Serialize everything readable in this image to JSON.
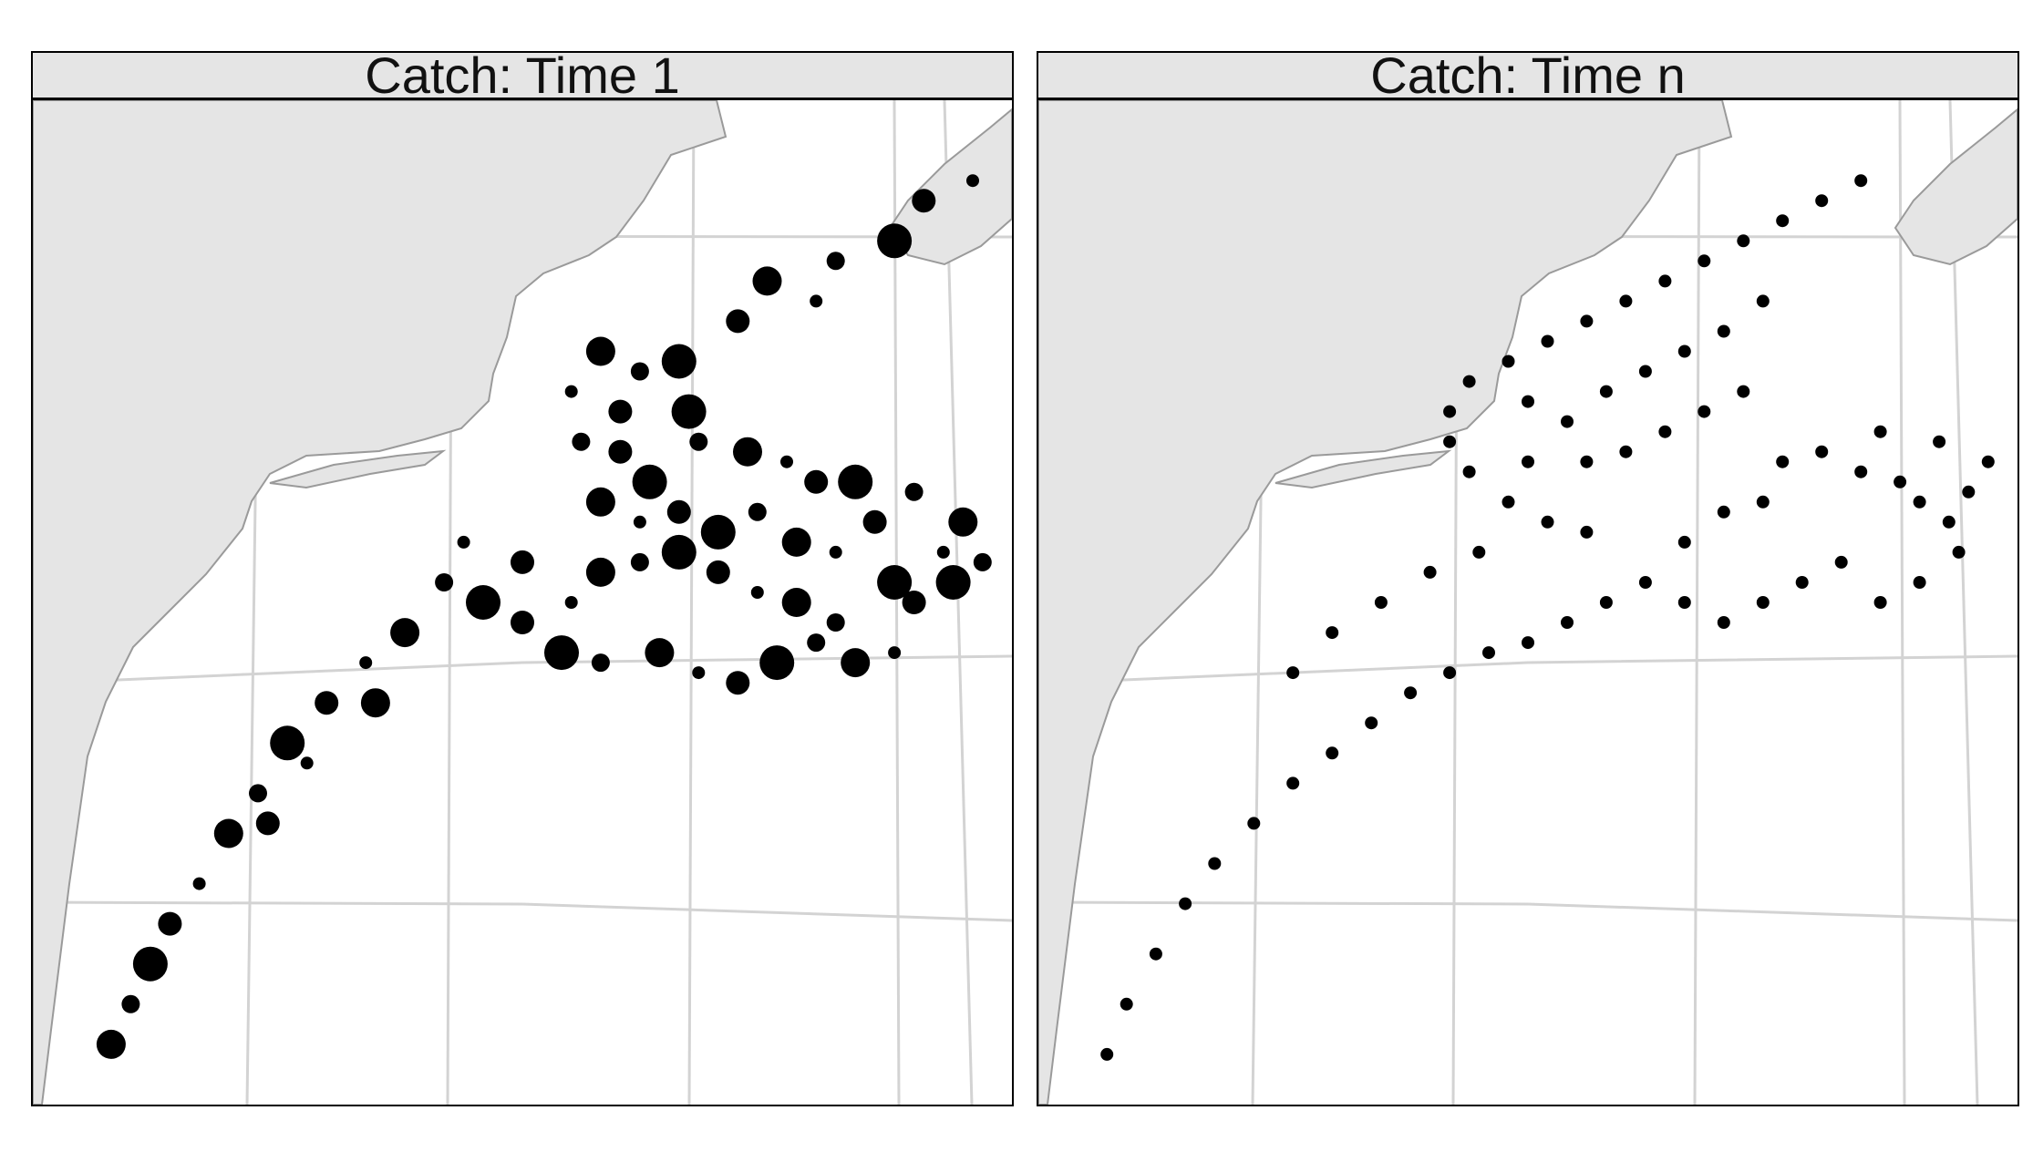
{
  "panels": [
    {
      "strip_title": "Catch: Time 1"
    },
    {
      "strip_title": "Catch: Time n"
    }
  ],
  "colors": {
    "land": "#e5e5e5",
    "coast": "#9a9a9a",
    "grid": "#d3d3d3",
    "point": "#000000",
    "strip": "#e5e5e5"
  },
  "chart_data": [
    {
      "type": "scatter",
      "title": "Catch: Time 1",
      "description_of_marks": "catch locations; circle size proportional to catch",
      "points": [
        [
          0.96,
          0.08
        ],
        [
          0.91,
          0.1
        ],
        [
          0.88,
          0.14
        ],
        [
          0.82,
          0.16
        ],
        [
          0.75,
          0.18
        ],
        [
          0.8,
          0.2
        ],
        [
          0.72,
          0.22
        ],
        [
          0.66,
          0.26
        ],
        [
          0.62,
          0.27
        ],
        [
          0.58,
          0.25
        ],
        [
          0.55,
          0.29
        ],
        [
          0.6,
          0.31
        ],
        [
          0.67,
          0.31
        ],
        [
          0.68,
          0.34
        ],
        [
          0.73,
          0.35
        ],
        [
          0.77,
          0.36
        ],
        [
          0.8,
          0.38
        ],
        [
          0.84,
          0.38
        ],
        [
          0.9,
          0.39
        ],
        [
          0.95,
          0.42
        ],
        [
          0.93,
          0.45
        ],
        [
          0.6,
          0.35
        ],
        [
          0.63,
          0.38
        ],
        [
          0.56,
          0.34
        ],
        [
          0.58,
          0.4
        ],
        [
          0.62,
          0.42
        ],
        [
          0.66,
          0.41
        ],
        [
          0.7,
          0.43
        ],
        [
          0.74,
          0.41
        ],
        [
          0.78,
          0.44
        ],
        [
          0.82,
          0.45
        ],
        [
          0.86,
          0.42
        ],
        [
          0.88,
          0.48
        ],
        [
          0.82,
          0.52
        ],
        [
          0.78,
          0.5
        ],
        [
          0.74,
          0.49
        ],
        [
          0.7,
          0.47
        ],
        [
          0.66,
          0.45
        ],
        [
          0.62,
          0.46
        ],
        [
          0.58,
          0.47
        ],
        [
          0.55,
          0.5
        ],
        [
          0.5,
          0.46
        ],
        [
          0.46,
          0.5
        ],
        [
          0.42,
          0.48
        ],
        [
          0.38,
          0.53
        ],
        [
          0.34,
          0.56
        ],
        [
          0.3,
          0.6
        ],
        [
          0.26,
          0.64
        ],
        [
          0.23,
          0.69
        ],
        [
          0.2,
          0.73
        ],
        [
          0.17,
          0.78
        ],
        [
          0.14,
          0.82
        ],
        [
          0.12,
          0.86
        ],
        [
          0.1,
          0.9
        ],
        [
          0.08,
          0.94
        ],
        [
          0.44,
          0.44
        ],
        [
          0.5,
          0.52
        ],
        [
          0.54,
          0.55
        ],
        [
          0.58,
          0.56
        ],
        [
          0.64,
          0.55
        ],
        [
          0.68,
          0.57
        ],
        [
          0.72,
          0.58
        ],
        [
          0.76,
          0.56
        ],
        [
          0.8,
          0.54
        ],
        [
          0.84,
          0.56
        ],
        [
          0.88,
          0.55
        ],
        [
          0.9,
          0.5
        ],
        [
          0.94,
          0.48
        ],
        [
          0.97,
          0.46
        ],
        [
          0.35,
          0.6
        ],
        [
          0.28,
          0.66
        ],
        [
          0.24,
          0.72
        ]
      ]
    },
    {
      "type": "scatter",
      "title": "Catch: Time n",
      "description_of_marks": "catch locations; uniform circle size",
      "points": [
        [
          0.84,
          0.08
        ],
        [
          0.8,
          0.1
        ],
        [
          0.76,
          0.12
        ],
        [
          0.72,
          0.14
        ],
        [
          0.68,
          0.16
        ],
        [
          0.64,
          0.18
        ],
        [
          0.6,
          0.2
        ],
        [
          0.56,
          0.22
        ],
        [
          0.52,
          0.24
        ],
        [
          0.48,
          0.26
        ],
        [
          0.44,
          0.28
        ],
        [
          0.42,
          0.31
        ],
        [
          0.42,
          0.34
        ],
        [
          0.44,
          0.37
        ],
        [
          0.48,
          0.4
        ],
        [
          0.52,
          0.42
        ],
        [
          0.56,
          0.43
        ],
        [
          0.5,
          0.3
        ],
        [
          0.54,
          0.32
        ],
        [
          0.58,
          0.29
        ],
        [
          0.62,
          0.27
        ],
        [
          0.66,
          0.25
        ],
        [
          0.7,
          0.23
        ],
        [
          0.74,
          0.2
        ],
        [
          0.6,
          0.35
        ],
        [
          0.64,
          0.33
        ],
        [
          0.68,
          0.31
        ],
        [
          0.72,
          0.29
        ],
        [
          0.76,
          0.36
        ],
        [
          0.8,
          0.35
        ],
        [
          0.84,
          0.37
        ],
        [
          0.88,
          0.38
        ],
        [
          0.9,
          0.4
        ],
        [
          0.93,
          0.42
        ],
        [
          0.95,
          0.39
        ],
        [
          0.97,
          0.36
        ],
        [
          0.92,
          0.34
        ],
        [
          0.86,
          0.33
        ],
        [
          0.82,
          0.46
        ],
        [
          0.78,
          0.48
        ],
        [
          0.74,
          0.5
        ],
        [
          0.7,
          0.52
        ],
        [
          0.66,
          0.5
        ],
        [
          0.62,
          0.48
        ],
        [
          0.58,
          0.5
        ],
        [
          0.54,
          0.52
        ],
        [
          0.5,
          0.54
        ],
        [
          0.46,
          0.55
        ],
        [
          0.42,
          0.57
        ],
        [
          0.38,
          0.59
        ],
        [
          0.34,
          0.62
        ],
        [
          0.3,
          0.65
        ],
        [
          0.26,
          0.68
        ],
        [
          0.22,
          0.72
        ],
        [
          0.18,
          0.76
        ],
        [
          0.15,
          0.8
        ],
        [
          0.12,
          0.85
        ],
        [
          0.09,
          0.9
        ],
        [
          0.07,
          0.95
        ],
        [
          0.45,
          0.45
        ],
        [
          0.4,
          0.47
        ],
        [
          0.35,
          0.5
        ],
        [
          0.3,
          0.53
        ],
        [
          0.26,
          0.57
        ],
        [
          0.86,
          0.5
        ],
        [
          0.9,
          0.48
        ],
        [
          0.94,
          0.45
        ],
        [
          0.66,
          0.44
        ],
        [
          0.7,
          0.41
        ],
        [
          0.74,
          0.4
        ],
        [
          0.56,
          0.36
        ],
        [
          0.5,
          0.36
        ]
      ]
    }
  ]
}
